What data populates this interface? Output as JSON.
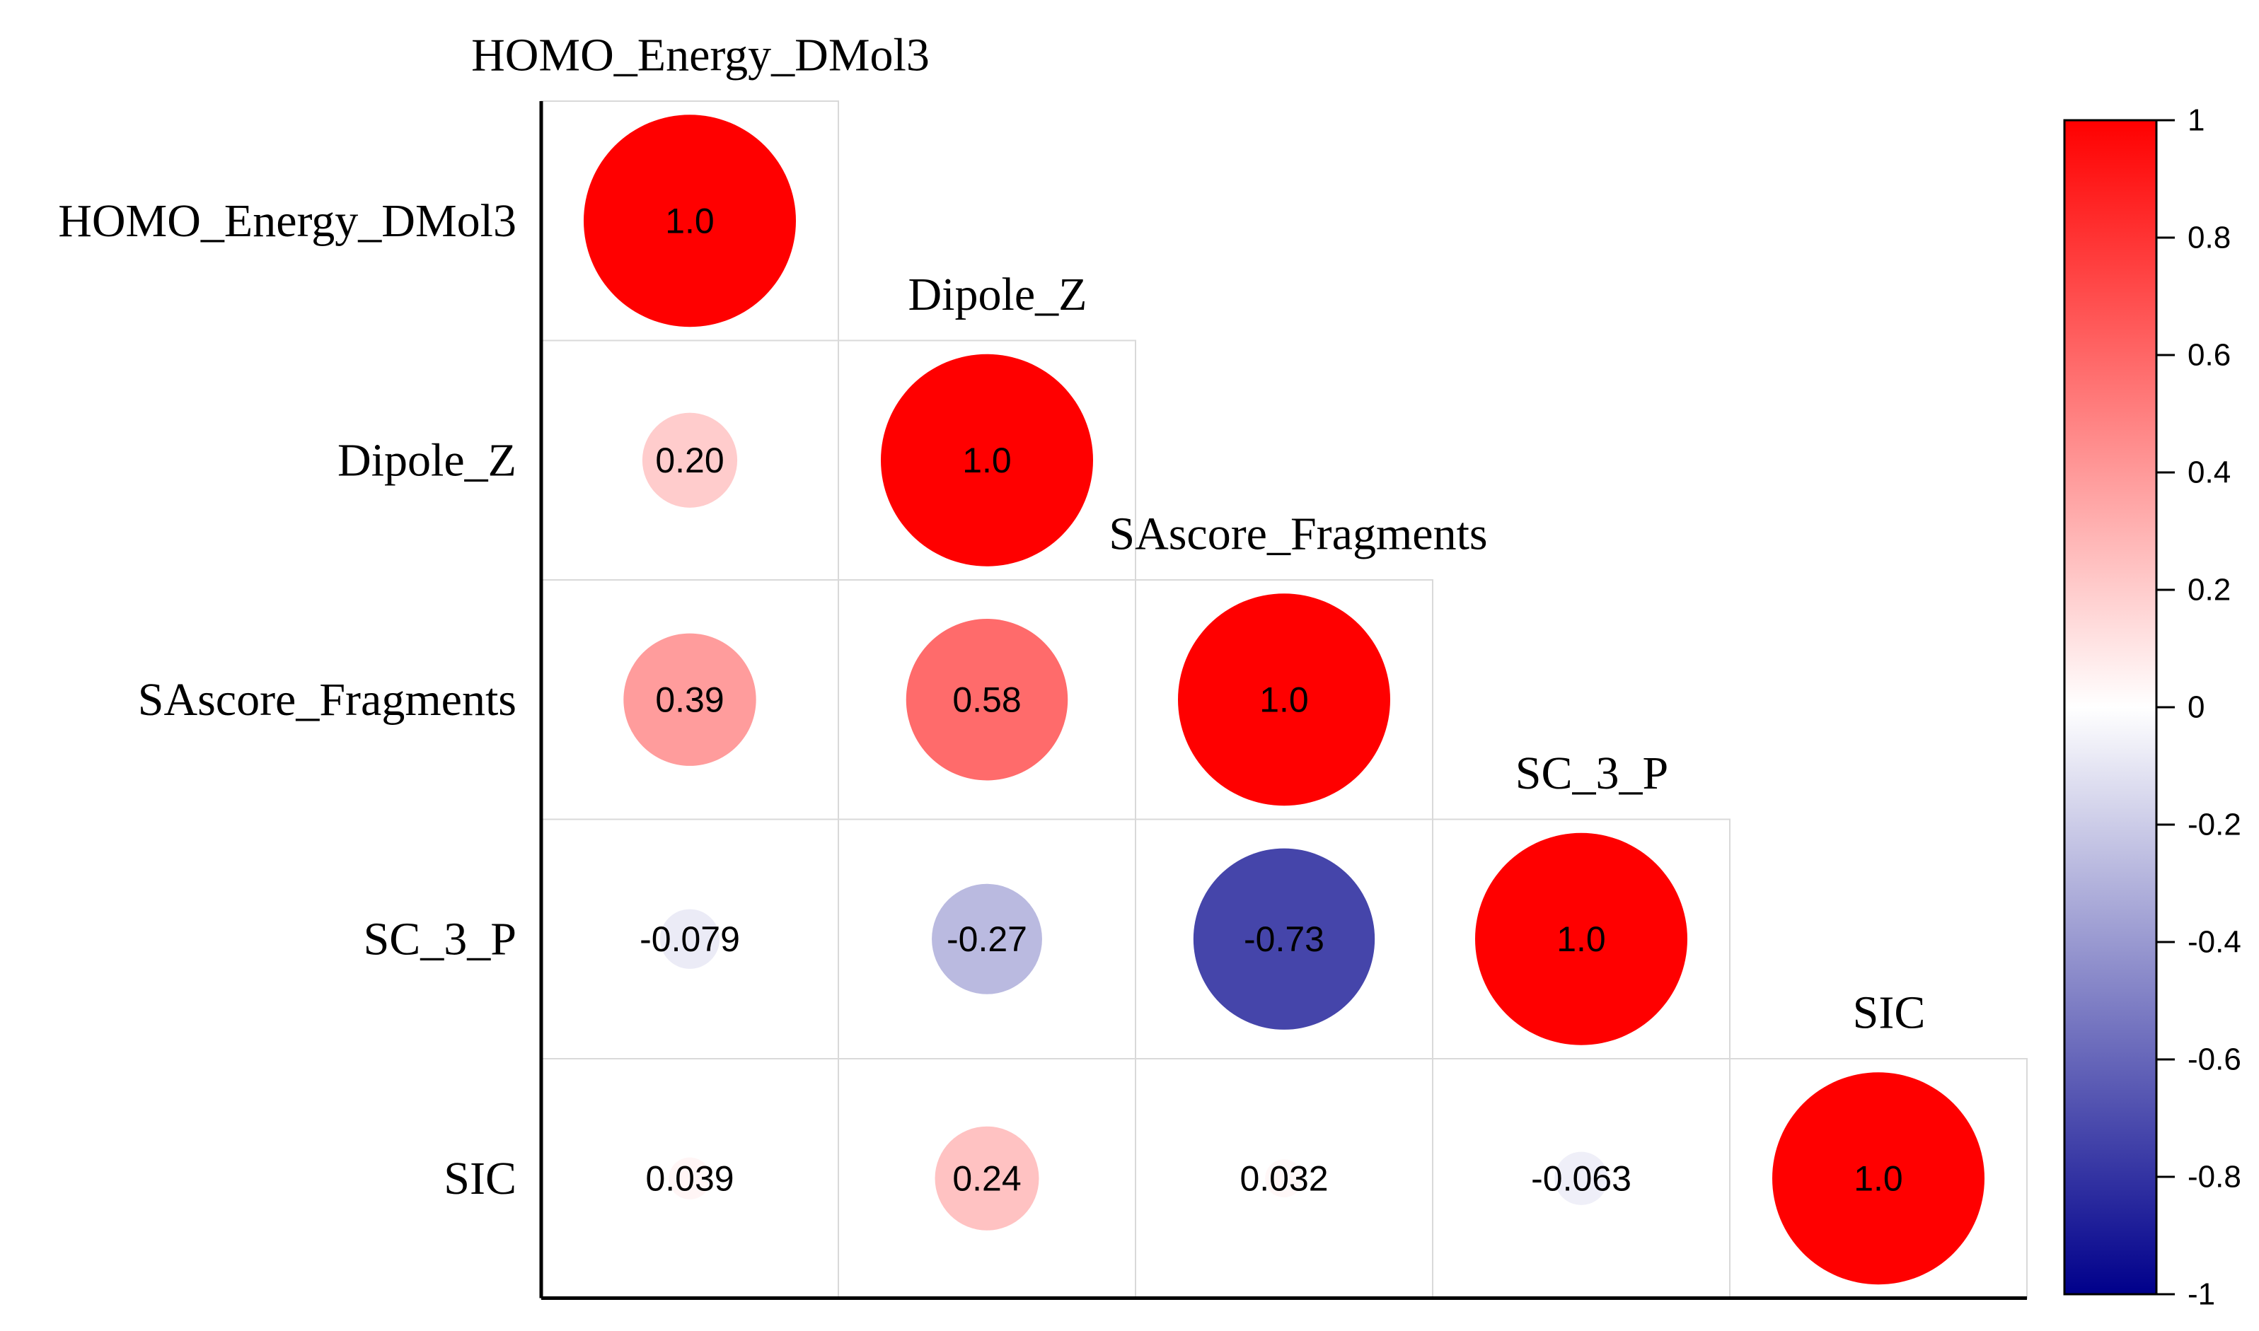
{
  "chart_data": {
    "type": "heatmap",
    "subtype": "correlation-circle-lower-triangle",
    "variables": [
      "HOMO_Energy_DMol3",
      "Dipole_Z",
      "SAscore_Fragments",
      "SC_3_P",
      "SIC"
    ],
    "cells": [
      {
        "row": 0,
        "col": 0,
        "value": 1.0,
        "label": "1.0"
      },
      {
        "row": 1,
        "col": 0,
        "value": 0.2,
        "label": "0.20"
      },
      {
        "row": 1,
        "col": 1,
        "value": 1.0,
        "label": "1.0"
      },
      {
        "row": 2,
        "col": 0,
        "value": 0.39,
        "label": "0.39"
      },
      {
        "row": 2,
        "col": 1,
        "value": 0.58,
        "label": "0.58"
      },
      {
        "row": 2,
        "col": 2,
        "value": 1.0,
        "label": "1.0"
      },
      {
        "row": 3,
        "col": 0,
        "value": -0.079,
        "label": "-0.079"
      },
      {
        "row": 3,
        "col": 1,
        "value": -0.27,
        "label": "-0.27"
      },
      {
        "row": 3,
        "col": 2,
        "value": -0.73,
        "label": "-0.73"
      },
      {
        "row": 3,
        "col": 3,
        "value": 1.0,
        "label": "1.0"
      },
      {
        "row": 4,
        "col": 0,
        "value": 0.039,
        "label": "0.039"
      },
      {
        "row": 4,
        "col": 1,
        "value": 0.24,
        "label": "0.24"
      },
      {
        "row": 4,
        "col": 2,
        "value": 0.032,
        "label": "0.032"
      },
      {
        "row": 4,
        "col": 3,
        "value": -0.063,
        "label": "-0.063"
      },
      {
        "row": 4,
        "col": 4,
        "value": 1.0,
        "label": "1.0"
      }
    ],
    "colorbar": {
      "range": [
        -1,
        1
      ],
      "ticks": [
        1,
        0.8,
        0.6,
        0.4,
        0.2,
        0,
        -0.2,
        -0.4,
        -0.6,
        -0.8,
        -1
      ],
      "tick_labels": [
        "1",
        "0.8",
        "0.6",
        "0.4",
        "0.2",
        "0",
        "-0.2",
        "-0.4",
        "-0.6",
        "-0.8",
        "-1"
      ],
      "colors": {
        "max": "#ff0000",
        "mid": "#ffffff",
        "min": "#00008b"
      }
    }
  }
}
